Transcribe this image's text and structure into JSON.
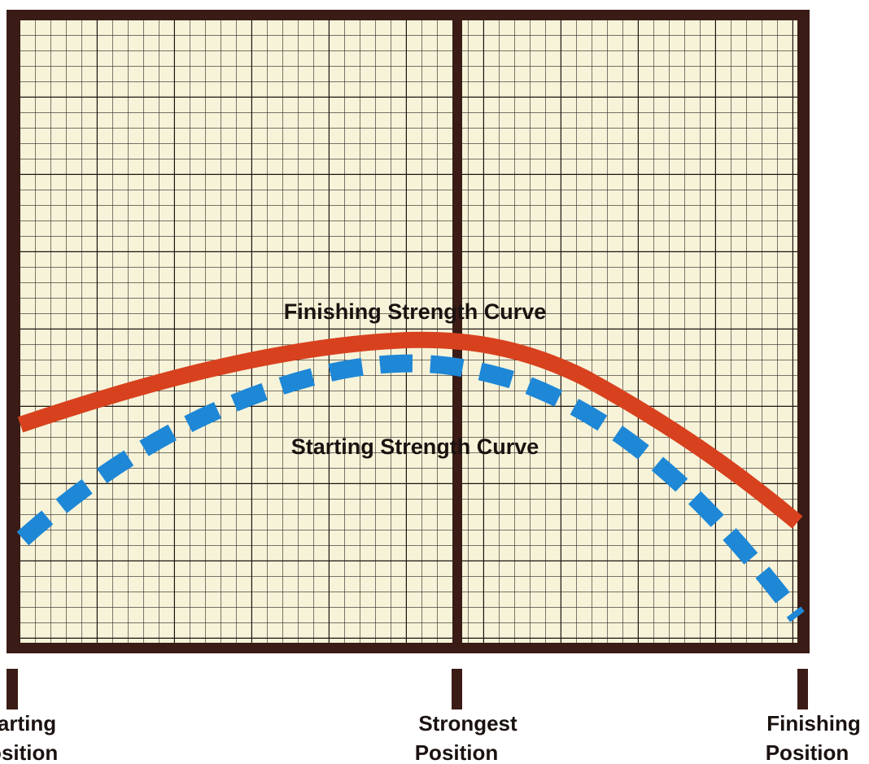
{
  "curves": [
    {
      "label": "Finishing Strength Curve"
    },
    {
      "label": "Starting Strength Curve"
    }
  ],
  "positions": [
    {
      "line1": "Starting",
      "line2": "Position"
    },
    {
      "line1": "Strongest",
      "line2": "Position"
    },
    {
      "line1": "Finishing",
      "line2": "Position"
    }
  ]
}
